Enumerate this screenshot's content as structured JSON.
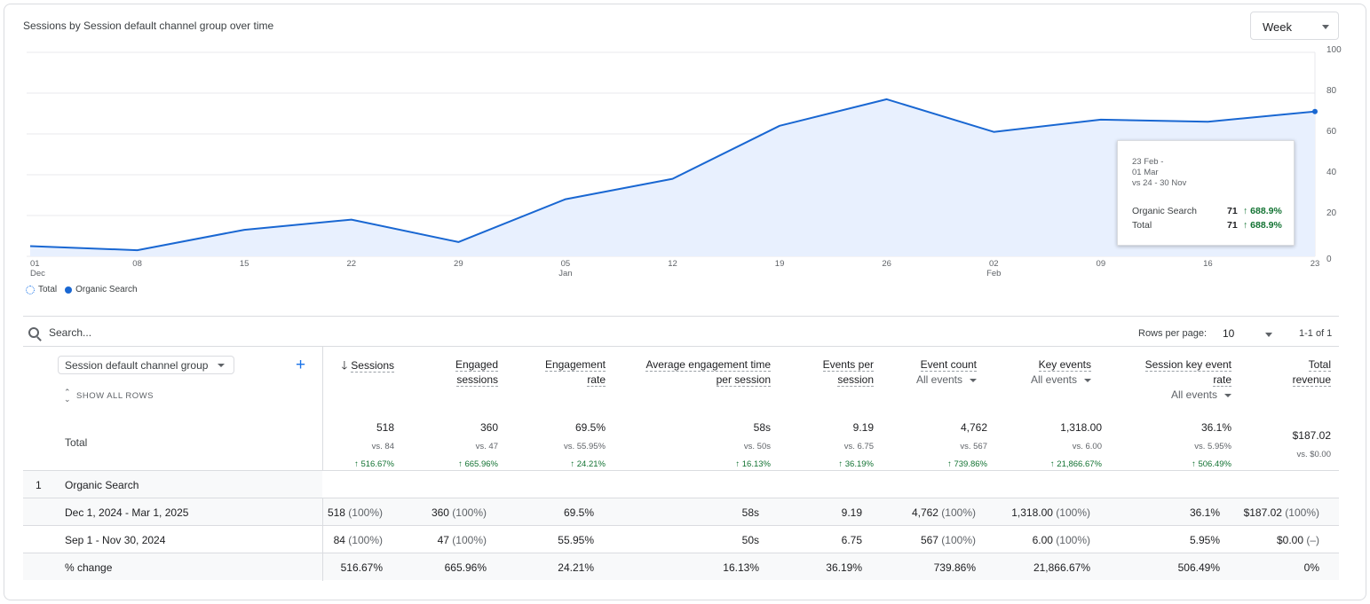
{
  "card": {
    "title": "Sessions by Session default channel group over time",
    "granularity": "Week"
  },
  "chart_data": {
    "type": "area",
    "title": "Sessions by Session default channel group over time",
    "x_tick_labels": [
      {
        "day": "01",
        "month": "Dec"
      },
      {
        "day": "08",
        "month": ""
      },
      {
        "day": "15",
        "month": ""
      },
      {
        "day": "22",
        "month": ""
      },
      {
        "day": "29",
        "month": ""
      },
      {
        "day": "05",
        "month": "Jan"
      },
      {
        "day": "12",
        "month": ""
      },
      {
        "day": "19",
        "month": ""
      },
      {
        "day": "26",
        "month": ""
      },
      {
        "day": "02",
        "month": "Feb"
      },
      {
        "day": "09",
        "month": ""
      },
      {
        "day": "16",
        "month": ""
      },
      {
        "day": "23",
        "month": ""
      }
    ],
    "y_ticks": [
      0,
      20,
      40,
      60,
      80,
      100
    ],
    "ylim": [
      0,
      100
    ],
    "grid": true,
    "series": [
      {
        "name": "Organic Search",
        "color": "#1967d2",
        "fill": "#e8f0fe",
        "values": [
          5,
          3,
          13,
          18,
          7,
          28,
          38,
          64,
          77,
          61,
          67,
          66,
          71
        ]
      }
    ],
    "legend": [
      {
        "name": "Total",
        "style": "dotted-ring"
      },
      {
        "name": "Organic Search",
        "style": "filled-dot"
      }
    ],
    "legend_position": "bottom-left",
    "tooltip": {
      "date_lines": [
        "23 Feb -",
        "01 Mar",
        "vs 24 - 30 Nov"
      ],
      "rows": [
        {
          "label": "Organic Search",
          "value": "71",
          "change": "688.9%"
        },
        {
          "label": "Total",
          "value": "71",
          "change": "688.9%"
        }
      ]
    }
  },
  "table": {
    "search_placeholder": "Search...",
    "rows_per_page_label": "Rows per page:",
    "rows_per_page_value": "10",
    "pagination": "1-1 of 1",
    "dimension_label": "Session default channel group",
    "show_all_rows": "SHOW ALL ROWS",
    "columns": [
      {
        "key": "sessions",
        "line1": "Sessions",
        "line2": "",
        "sub": "",
        "sorted": true
      },
      {
        "key": "engaged",
        "line1": "Engaged",
        "line2": "sessions",
        "sub": ""
      },
      {
        "key": "eng_rate",
        "line1": "Engagement",
        "line2": "rate",
        "sub": ""
      },
      {
        "key": "avg_time",
        "line1": "Average engagement time",
        "line2": "per session",
        "sub": ""
      },
      {
        "key": "events_per",
        "line1": "Events per",
        "line2": "session",
        "sub": ""
      },
      {
        "key": "event_count",
        "line1": "Event count",
        "line2": "",
        "sub": "All events"
      },
      {
        "key": "key_events",
        "line1": "Key events",
        "line2": "",
        "sub": "All events"
      },
      {
        "key": "sess_key_rate",
        "line1": "Session key event",
        "line2": "rate",
        "sub": "All events"
      },
      {
        "key": "revenue",
        "line1": "Total",
        "line2": "revenue",
        "sub": ""
      }
    ],
    "total": {
      "label": "Total",
      "values": [
        {
          "v": "518",
          "vs": "vs. 84",
          "chg": "↑ 516.67%"
        },
        {
          "v": "360",
          "vs": "vs. 47",
          "chg": "↑ 665.96%"
        },
        {
          "v": "69.5%",
          "vs": "vs. 55.95%",
          "chg": "↑ 24.21%"
        },
        {
          "v": "58s",
          "vs": "vs. 50s",
          "chg": "↑ 16.13%"
        },
        {
          "v": "9.19",
          "vs": "vs. 6.75",
          "chg": "↑ 36.19%"
        },
        {
          "v": "4,762",
          "vs": "vs. 567",
          "chg": "↑ 739.86%"
        },
        {
          "v": "1,318.00",
          "vs": "vs. 6.00",
          "chg": "↑ 21,866.67%"
        },
        {
          "v": "36.1%",
          "vs": "vs. 5.95%",
          "chg": "↑ 506.49%"
        },
        {
          "v": "$187.02",
          "vs": "vs. $0.00",
          "chg": ""
        }
      ]
    },
    "group": {
      "index": "1",
      "label": "Organic Search"
    },
    "rows": [
      {
        "label": "Dec 1, 2024 - Mar 1, 2025",
        "cells": [
          [
            "518",
            " (100%)"
          ],
          [
            "360",
            " (100%)"
          ],
          [
            "69.5%",
            ""
          ],
          [
            "58s",
            ""
          ],
          [
            "9.19",
            ""
          ],
          [
            "4,762",
            " (100%)"
          ],
          [
            "1,318.00",
            " (100%)"
          ],
          [
            "36.1%",
            ""
          ],
          [
            "$187.02",
            " (100%)"
          ]
        ]
      },
      {
        "label": "Sep 1 - Nov 30, 2024",
        "cells": [
          [
            "84",
            " (100%)"
          ],
          [
            "47",
            " (100%)"
          ],
          [
            "55.95%",
            ""
          ],
          [
            "50s",
            ""
          ],
          [
            "6.75",
            ""
          ],
          [
            "567",
            " (100%)"
          ],
          [
            "6.00",
            " (100%)"
          ],
          [
            "5.95%",
            ""
          ],
          [
            "$0.00",
            " (–)"
          ]
        ]
      },
      {
        "label": "% change",
        "cells": [
          [
            "516.67%",
            ""
          ],
          [
            "665.96%",
            ""
          ],
          [
            "24.21%",
            ""
          ],
          [
            "16.13%",
            ""
          ],
          [
            "36.19%",
            ""
          ],
          [
            "739.86%",
            ""
          ],
          [
            "21,866.67%",
            ""
          ],
          [
            "506.49%",
            ""
          ],
          [
            "0%",
            ""
          ]
        ]
      }
    ]
  }
}
